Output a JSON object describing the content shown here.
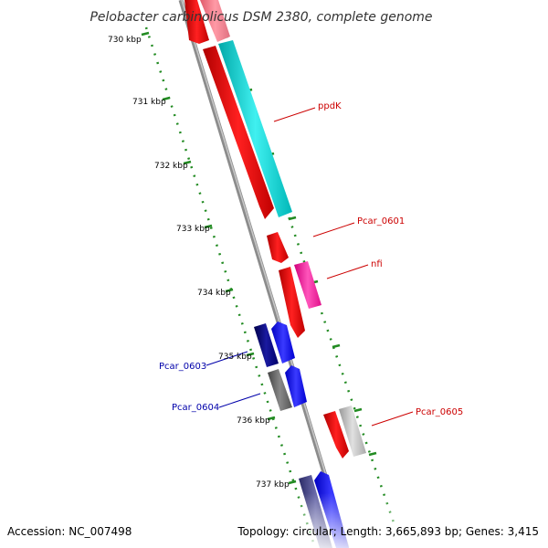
{
  "title": "Pelobacter carbinolicus DSM 2380, complete genome",
  "footer": {
    "accession": "Accession: NC_007498",
    "summary": "Topology: circular; Length: 3,665,893 bp; Genes: 3,415"
  },
  "scale": {
    "unit": "kbp",
    "ticks": [
      "730 kbp",
      "731 kbp",
      "732 kbp",
      "733 kbp",
      "734 kbp",
      "735 kbp",
      "736 kbp",
      "737 kbp"
    ]
  },
  "gene_labels": [
    {
      "name": "ppdK",
      "color": "#cc0000"
    },
    {
      "name": "Pcar_0601",
      "color": "#cc0000"
    },
    {
      "name": "nfi",
      "color": "#cc0000"
    },
    {
      "name": "Pcar_0603",
      "color": "#0000aa"
    },
    {
      "name": "Pcar_0604",
      "color": "#0000aa"
    },
    {
      "name": "Pcar_0605",
      "color": "#cc0000"
    }
  ],
  "colors": {
    "backbone": "#8c8c8c",
    "scale_dots": "#228b22",
    "forward_red": "#ff0000",
    "cyan": "#00cccc",
    "magenta": "#ff1aa3",
    "navy": "#000088",
    "blue": "#0000ff",
    "grey": "#666666",
    "light_grey": "#bbbbbb"
  }
}
